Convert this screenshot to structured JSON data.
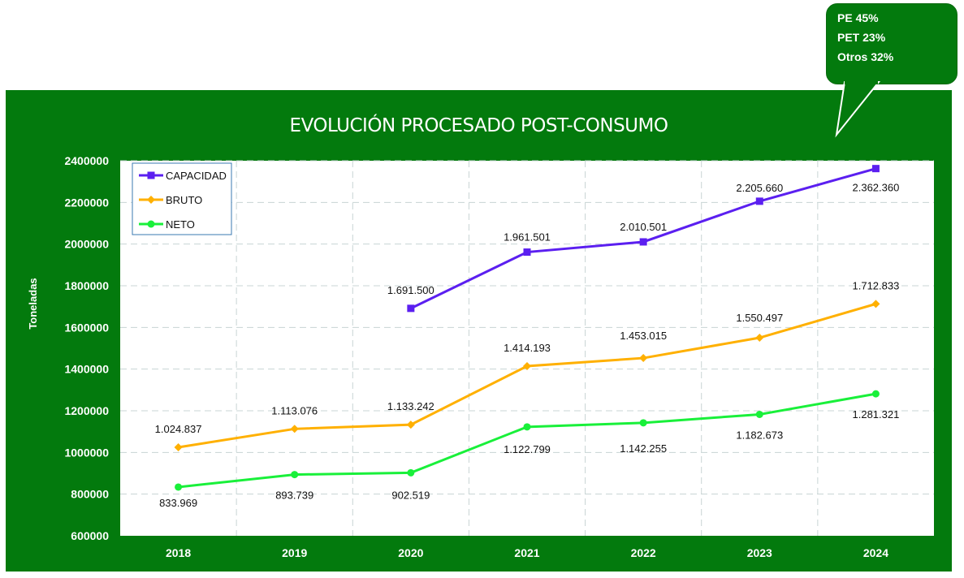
{
  "callout": {
    "lines": [
      "PE 45%",
      "PET  23%",
      "Otros  32%"
    ]
  },
  "chart_data": {
    "type": "line",
    "title": "EVOLUCIÓN PROCESADO POST-CONSUMO",
    "xlabel": "",
    "ylabel": "Toneladas",
    "categories": [
      "2018",
      "2019",
      "2020",
      "2021",
      "2022",
      "2023",
      "2024"
    ],
    "ylim": [
      600000,
      2400000
    ],
    "yticks": [
      "600000",
      "800000",
      "1000000",
      "1200000",
      "1400000",
      "1600000",
      "1800000",
      "2000000",
      "2200000",
      "2400000"
    ],
    "grid": true,
    "legend": "top-left",
    "series": [
      {
        "name": "CAPACIDAD",
        "color": "#5b1ff0",
        "marker": "square",
        "values": [
          null,
          null,
          1691500,
          1961501,
          2010501,
          2205660,
          2362360
        ],
        "labels": [
          "",
          "",
          "1.691.500",
          "1.961.501",
          "2.010.501",
          "2.205.660",
          "2.362.360"
        ]
      },
      {
        "name": "BRUTO",
        "color": "#ffb000",
        "marker": "diamond",
        "values": [
          1024837,
          1113076,
          1133242,
          1414193,
          1453015,
          1550497,
          1712833
        ],
        "labels": [
          "1.024.837",
          "1.113.076",
          "1.133.242",
          "1.414.193",
          "1.453.015",
          "1.550.497",
          "1.712.833"
        ]
      },
      {
        "name": "NETO",
        "color": "#19f03a",
        "marker": "circle",
        "values": [
          833969,
          893739,
          902519,
          1122799,
          1142255,
          1182673,
          1281321
        ],
        "labels": [
          "833.969",
          "893.739",
          "902.519",
          "1.122.799",
          "1.142.255",
          "1.182.673",
          "1.281.321"
        ]
      }
    ]
  }
}
